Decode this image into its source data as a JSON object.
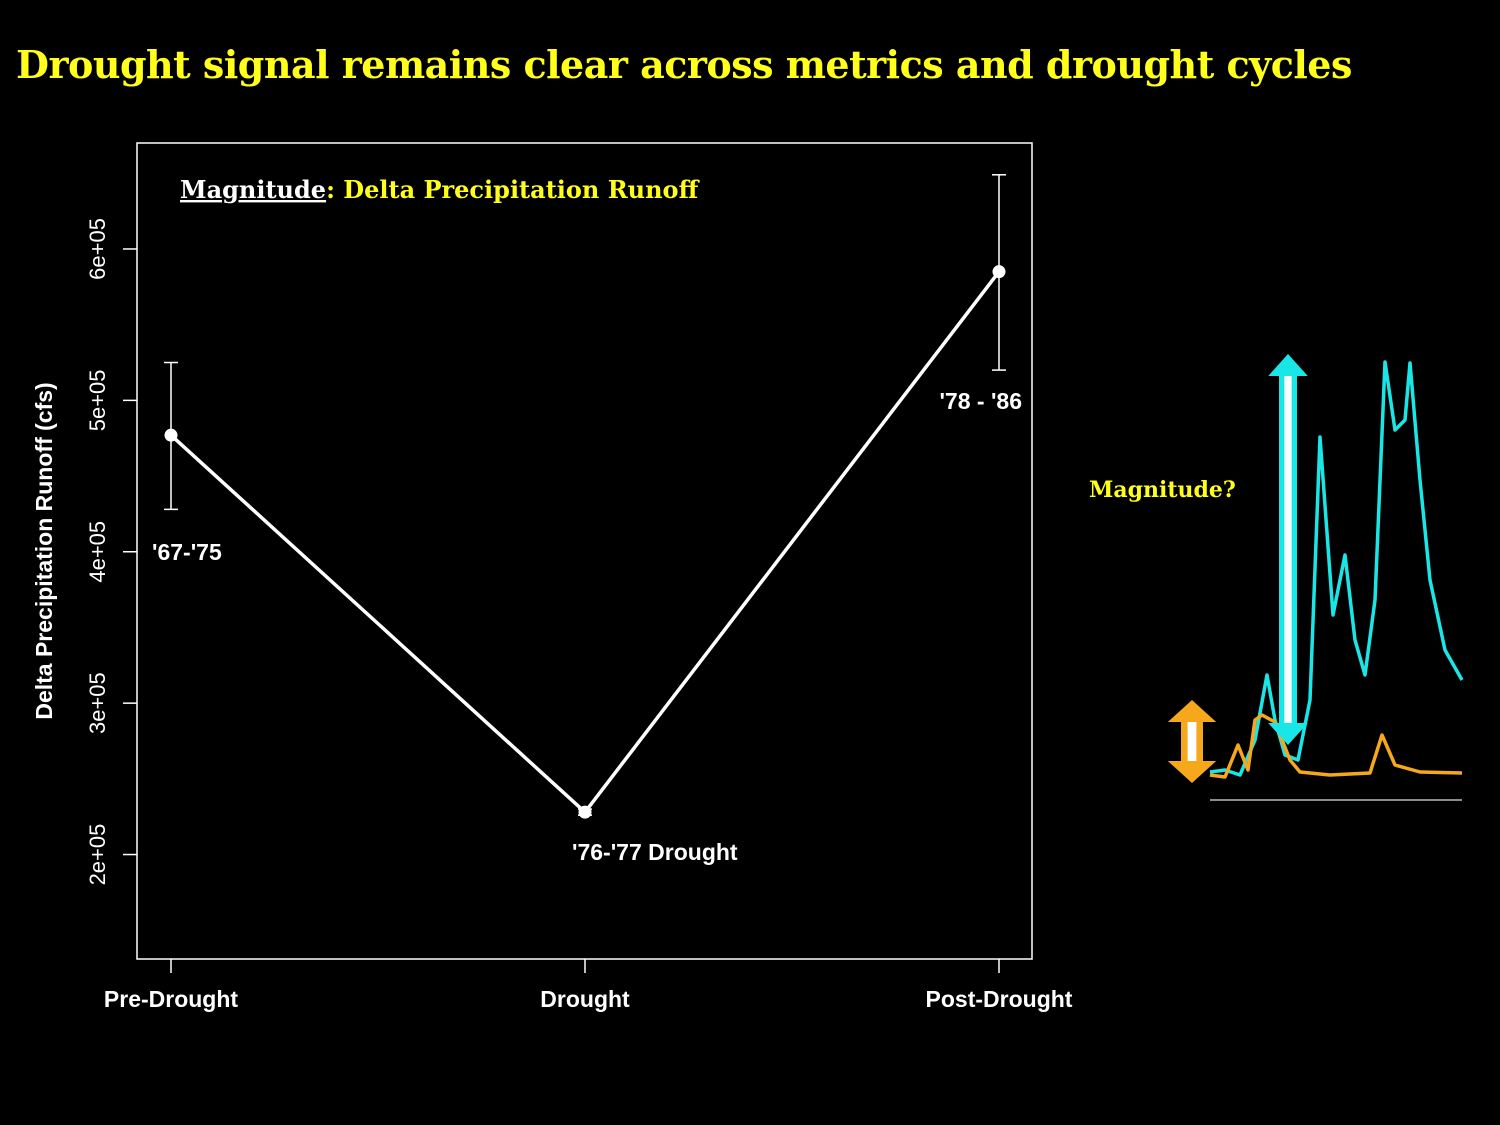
{
  "slide": {
    "title": "Drought signal remains clear across metrics and drought cycles"
  },
  "colors": {
    "title": "#ffff1a",
    "series_main": "#ffffff",
    "cyan": "#19e6e6",
    "orange": "#f5a81c"
  },
  "chart_data": [
    {
      "type": "line",
      "annotation_label": "Magnitude",
      "annotation_metric": ": Delta Precipitation Runoff",
      "xlabel": "",
      "ylabel": "Delta Precipitation Runoff (cfs)",
      "categories": [
        "Pre-Drought",
        "Drought",
        "Post-Drought"
      ],
      "values": [
        477000,
        228000,
        585000
      ],
      "error_low": [
        428000,
        226000,
        520000
      ],
      "error_high": [
        525000,
        230000,
        649000
      ],
      "point_labels": [
        "'67-'75",
        "'76-'77 Drought",
        "'78 - '86"
      ],
      "yticks": [
        200000,
        300000,
        400000,
        500000,
        600000
      ],
      "ytick_labels": [
        "2e+05",
        "3e+05",
        "4e+05",
        "5e+05",
        "6e+05"
      ],
      "ylim": [
        131000,
        670000
      ],
      "grid": false
    },
    {
      "type": "line",
      "annotation": "Magnitude?",
      "xlim": [
        0,
        252
      ],
      "ylim": [
        0,
        450
      ],
      "series": [
        {
          "name": "cyan",
          "x": [
            0,
            15,
            30,
            45,
            57,
            65,
            75,
            88,
            100,
            110,
            123,
            135,
            145,
            155,
            165,
            175,
            185,
            195,
            200,
            210,
            220,
            235,
            252
          ],
          "y": [
            26,
            28,
            23,
            58,
            123,
            78,
            43,
            38,
            98,
            361,
            183,
            243,
            158,
            123,
            198,
            436,
            368,
            378,
            435,
            318,
            218,
            148,
            118
          ]
        },
        {
          "name": "orange",
          "x": [
            0,
            15,
            28,
            38,
            45,
            52,
            65,
            80,
            90,
            120,
            160,
            172,
            185,
            210,
            252
          ],
          "y": [
            23,
            21,
            53,
            28,
            78,
            83,
            76,
            38,
            26,
            23,
            25,
            63,
            33,
            26,
            25
          ]
        }
      ]
    }
  ]
}
